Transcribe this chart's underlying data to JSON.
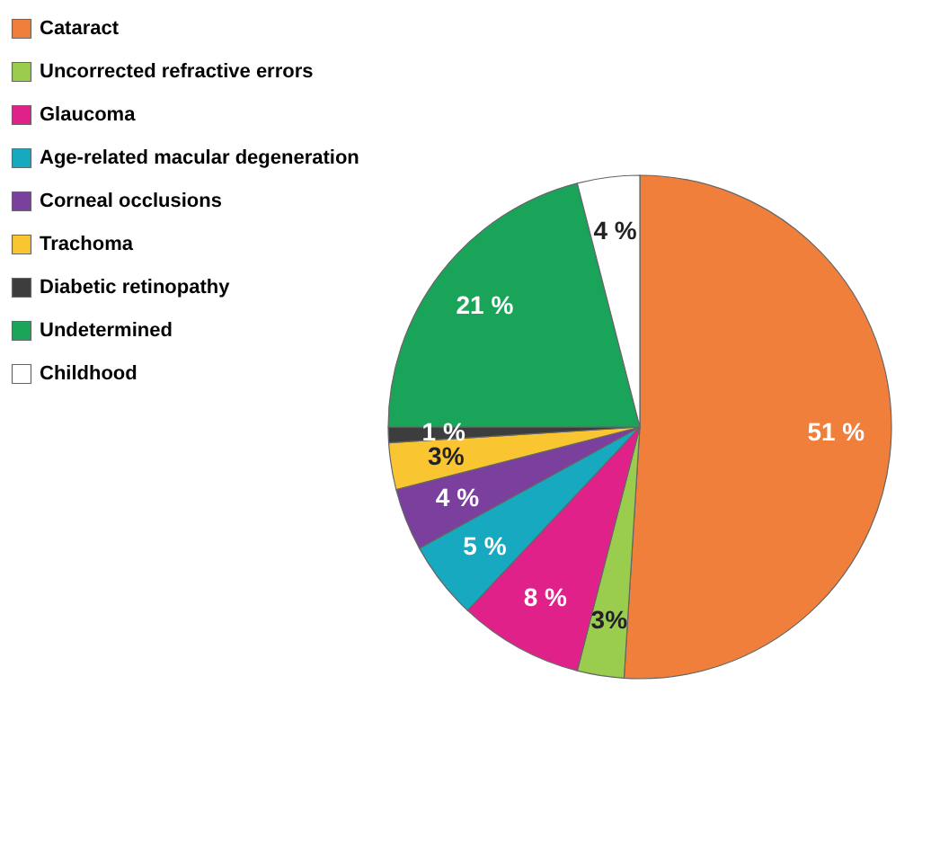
{
  "chart_data": {
    "type": "pie",
    "categories": [
      "Cataract",
      "Uncorrected refractive errors",
      "Glaucoma",
      "Age-related macular degeneration",
      "Corneal occlusions",
      "Trachoma",
      "Diabetic retinopathy",
      "Undetermined",
      "Childhood"
    ],
    "values": [
      51,
      3,
      8,
      5,
      4,
      3,
      1,
      21,
      4
    ],
    "value_labels": [
      "51 %",
      "3%",
      "8 %",
      "5 %",
      "4 %",
      "3%",
      "1 %",
      "21 %",
      "4 %"
    ],
    "colors": [
      "#f07f3c",
      "#9acd4e",
      "#e0218a",
      "#17a9c0",
      "#7b3f9e",
      "#f9c631",
      "#3d3d3d",
      "#1aa45a",
      "#ffffff"
    ],
    "legend": "left"
  }
}
